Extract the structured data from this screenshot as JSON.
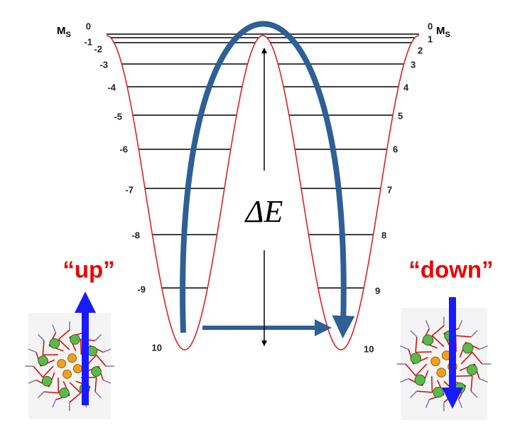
{
  "axis_label": {
    "main": "M",
    "sub": "S"
  },
  "left_levels": [
    "0",
    "-1",
    "-2",
    "-3",
    "-4",
    "-5",
    "-6",
    "-7",
    "-8",
    "-9",
    "10"
  ],
  "right_levels": [
    "0",
    "1",
    "2",
    "3",
    "4",
    "5",
    "6",
    "7",
    "8",
    "9",
    "10"
  ],
  "energy_barrier": "ΔE",
  "states": {
    "up": "“up”",
    "down": "“down”"
  }
}
